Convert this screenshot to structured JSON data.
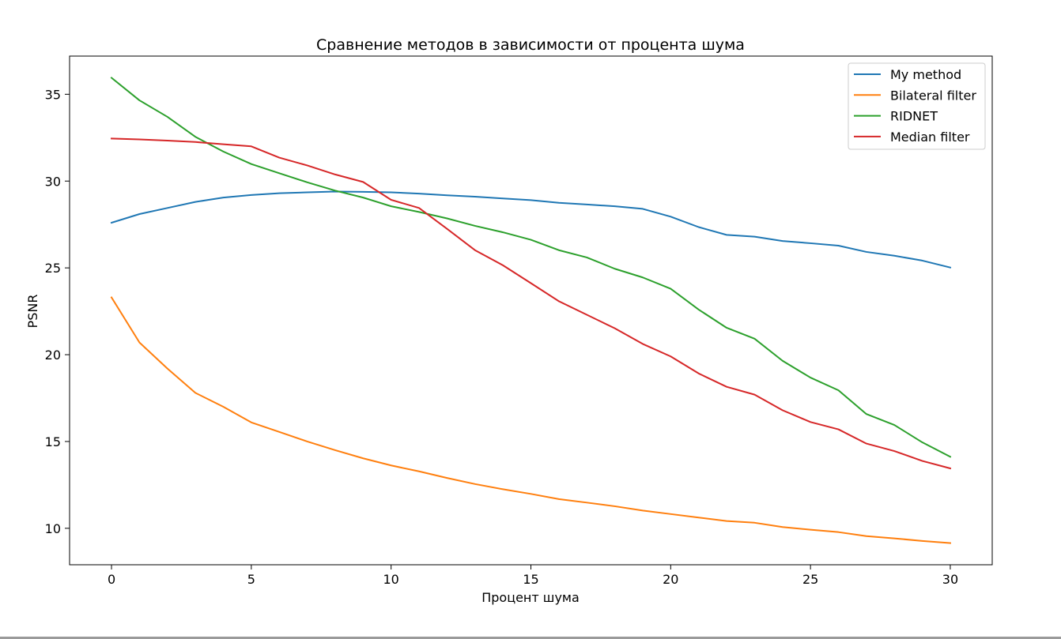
{
  "chart_data": {
    "type": "line",
    "title": "Сравнение методов в зависимости от процента шума",
    "xlabel": "Процент шума",
    "ylabel": "PSNR",
    "xlim": [
      -1.5,
      31.5
    ],
    "ylim": [
      7.9,
      37.2
    ],
    "xticks": [
      0,
      5,
      10,
      15,
      20,
      25,
      30
    ],
    "yticks": [
      10,
      15,
      20,
      25,
      30,
      35
    ],
    "grid": false,
    "legend_position": "top-right",
    "x": [
      0,
      1,
      2,
      3,
      4,
      5,
      6,
      7,
      8,
      9,
      10,
      11,
      12,
      13,
      14,
      15,
      16,
      17,
      18,
      19,
      20,
      21,
      22,
      23,
      24,
      25,
      26,
      27,
      28,
      29,
      30
    ],
    "series": [
      {
        "name": "My method",
        "color": "#1f77b4",
        "values": [
          27.6,
          28.1,
          28.45,
          28.8,
          29.05,
          29.2,
          29.3,
          29.35,
          29.4,
          29.38,
          29.35,
          29.28,
          29.18,
          29.1,
          29.0,
          28.9,
          28.75,
          28.65,
          28.55,
          28.4,
          27.95,
          27.35,
          26.9,
          26.8,
          26.55,
          26.42,
          26.28,
          25.92,
          25.7,
          25.42,
          25.02
        ]
      },
      {
        "name": "Bilateral filter",
        "color": "#ff7f0e",
        "values": [
          23.3,
          20.7,
          19.2,
          17.8,
          17.0,
          16.1,
          15.55,
          15.0,
          14.5,
          14.03,
          13.62,
          13.28,
          12.9,
          12.55,
          12.25,
          11.98,
          11.68,
          11.48,
          11.27,
          11.02,
          10.82,
          10.62,
          10.42,
          10.32,
          10.07,
          9.92,
          9.78,
          9.55,
          9.42,
          9.27,
          9.15
        ]
      },
      {
        "name": "RIDNET",
        "color": "#2ca02c",
        "values": [
          35.95,
          34.65,
          33.7,
          32.55,
          31.7,
          30.98,
          30.45,
          29.93,
          29.45,
          29.05,
          28.55,
          28.22,
          27.85,
          27.42,
          27.05,
          26.62,
          26.02,
          25.6,
          24.95,
          24.45,
          23.8,
          22.6,
          21.55,
          20.92,
          19.65,
          18.68,
          17.95,
          16.58,
          15.95,
          14.95,
          14.12
        ]
      },
      {
        "name": "Median filter",
        "color": "#d62728",
        "values": [
          32.45,
          32.4,
          32.33,
          32.25,
          32.12,
          32.0,
          31.35,
          30.9,
          30.38,
          29.95,
          28.92,
          28.45,
          27.25,
          26.02,
          25.15,
          24.12,
          23.08,
          22.3,
          21.52,
          20.62,
          19.9,
          18.92,
          18.15,
          17.7,
          16.8,
          16.12,
          15.7,
          14.88,
          14.45,
          13.88,
          13.45
        ]
      }
    ]
  }
}
